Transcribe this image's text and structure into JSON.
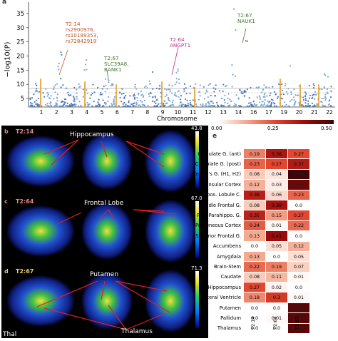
{
  "manhattan": {
    "panel": "a",
    "ylabel": "−log10(P)",
    "yticks": [
      "5",
      "10",
      "15",
      "20",
      "25",
      "30",
      "35"
    ],
    "xlabel": "Chromosome",
    "chromosomes": [
      "1",
      "2",
      "3",
      "4",
      "5",
      "6",
      "7",
      "8",
      "9",
      "10",
      "11",
      "12",
      "13",
      "14",
      "16",
      "17",
      "19",
      "20",
      "21",
      "22"
    ],
    "annotations": [
      {
        "text": "T2:14\nrs2900976,\nrs10189353,\nrs72842919",
        "color": "#c0542a"
      },
      {
        "text": "T2:67\nSLC39A8,\nBANK1",
        "color": "#3d7a2a"
      },
      {
        "text": "T2:64\nANGPT1",
        "color": "#b0338a"
      },
      {
        "text": "T2:67\nNAUK1",
        "color": "#3d7a2a"
      }
    ]
  },
  "colorbar": {
    "panel": "e",
    "ticks": [
      "0.00",
      "0.25",
      "0.50"
    ]
  },
  "brain": {
    "rows": [
      {
        "panel": "b",
        "label": "T2:14",
        "region": "Hippocampus",
        "max": "43.8",
        "labelColor": "#e08a8a"
      },
      {
        "panel": "c",
        "label": "T2:64",
        "region": "Frontal Lobe",
        "max": "67.0",
        "labelColor": "#e08a8a"
      },
      {
        "panel": "d",
        "label": "T2:67",
        "region": "Putamen",
        "max": "71.3",
        "labelColor": "#e0d070"
      }
    ],
    "extra_labels": [
      "Thalamus",
      "Thal"
    ]
  },
  "heatmap": {
    "columns": [
      "T2:14",
      "T2:64",
      "T2:67"
    ],
    "rows": [
      {
        "label": "Cingulate G. (ant)",
        "values": [
          0.19,
          0.38,
          0.27
        ]
      },
      {
        "label": "Cingulate G. (post)",
        "values": [
          0.23,
          0.27,
          0.37
        ]
      },
      {
        "label": "Heschl's G. (H1, H2)",
        "values": [
          0.08,
          0.04,
          0.58
        ]
      },
      {
        "label": "Insular Cortex",
        "values": [
          0.12,
          0.03,
          0.48
        ]
      },
      {
        "label": "Juxtapos. Lobule C.",
        "values": [
          0.36,
          0.06,
          0.23
        ]
      },
      {
        "label": "Middle Frontal G.",
        "values": [
          0.08,
          0.39,
          0.0
        ]
      },
      {
        "label": "Post Parahippo. G.",
        "values": [
          0.35,
          0.15,
          0.27
        ]
      },
      {
        "label": "Precuneous Cortex",
        "values": [
          0.24,
          0.01,
          0.22
        ]
      },
      {
        "label": "Superior Frontal G.",
        "values": [
          0.13,
          0.41,
          0.0
        ]
      },
      {
        "label": "Accumbens",
        "values": [
          0.0,
          0.05,
          0.12
        ]
      },
      {
        "label": "Amygdala",
        "values": [
          0.13,
          0.0,
          0.05
        ]
      },
      {
        "label": "Brain-Stem",
        "values": [
          0.22,
          0.19,
          0.07
        ]
      },
      {
        "label": "Caudate",
        "values": [
          0.08,
          0.11,
          0.01
        ]
      },
      {
        "label": "Hippocampus",
        "values": [
          0.27,
          0.02,
          0.0
        ]
      },
      {
        "label": "Lateral Ventricle",
        "values": [
          0.18,
          0.3,
          0.01
        ]
      },
      {
        "label": "Putamen",
        "values": [
          0.0,
          0.0,
          0.51
        ]
      },
      {
        "label": "Pallidum",
        "values": [
          0.0,
          0.01,
          0.51
        ]
      },
      {
        "label": "Thalamus",
        "values": [
          0.0,
          0.0,
          0.51
        ]
      }
    ]
  }
}
